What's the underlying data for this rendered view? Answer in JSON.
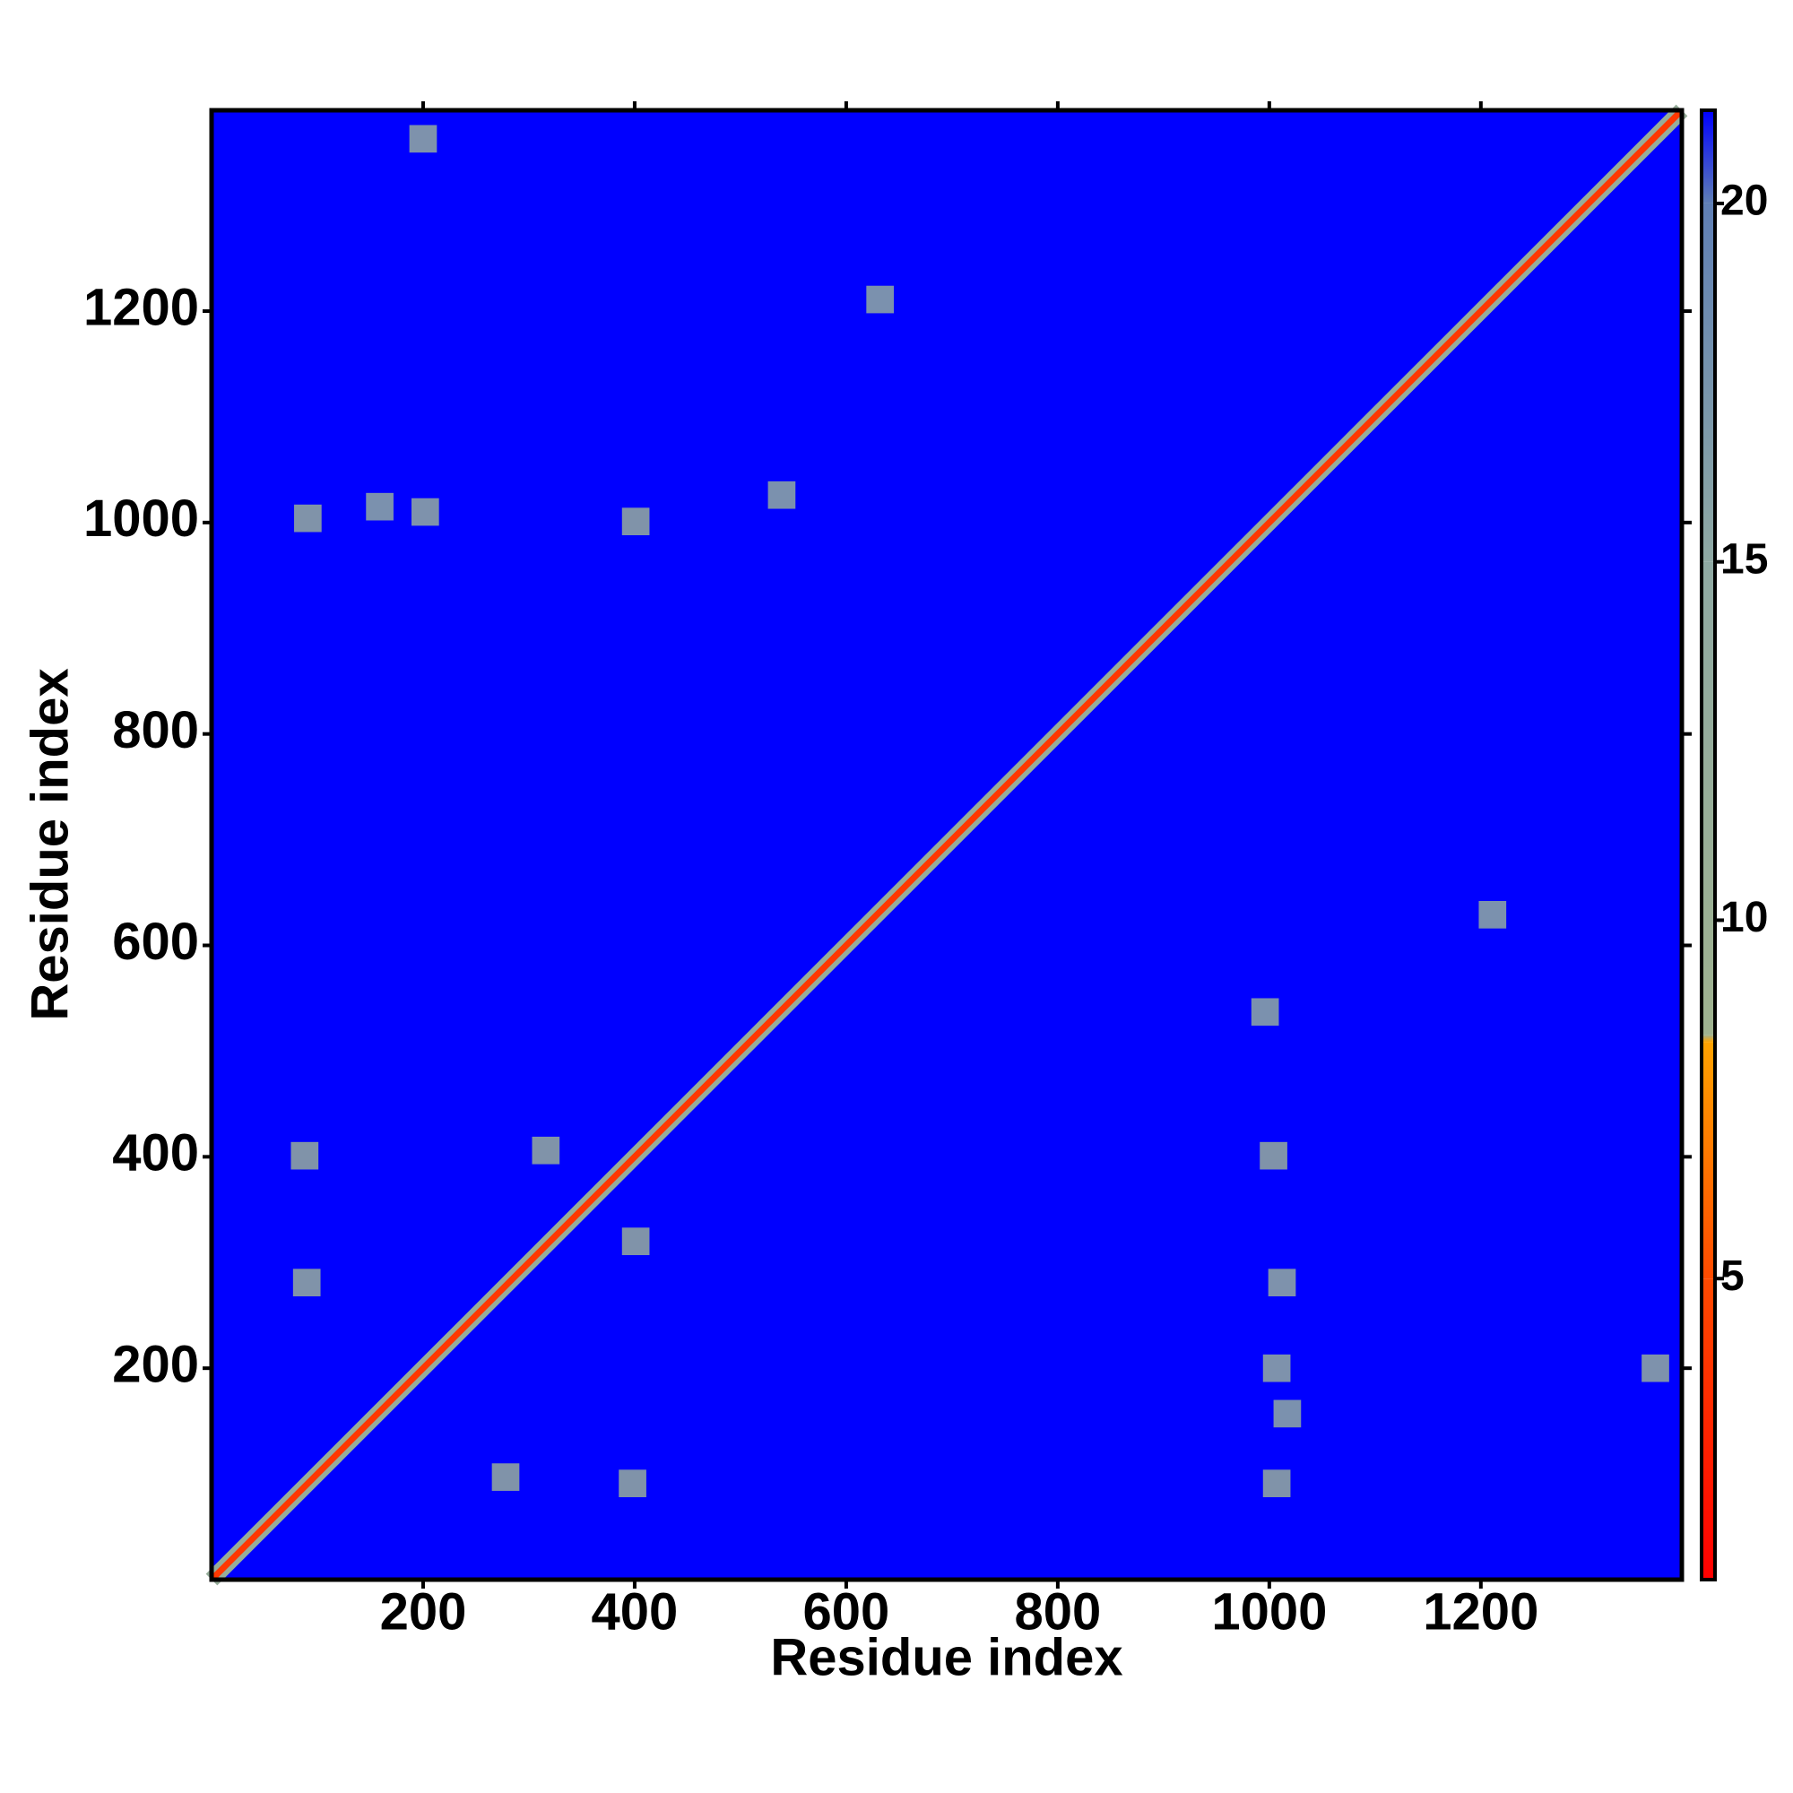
{
  "chart_data": {
    "type": "heatmap",
    "x_label": "Residue index",
    "y_label": "Residue index",
    "xlim": [
      0,
      1390
    ],
    "ylim": [
      0,
      1390
    ],
    "xticks": [
      200,
      400,
      600,
      800,
      1000,
      1200
    ],
    "yticks": [
      200,
      400,
      600,
      800,
      1000,
      1200
    ],
    "background_color": "#0000ff",
    "colorbar": {
      "lim": [
        0.8,
        21.3
      ],
      "ticks": [
        5,
        10,
        15,
        20
      ],
      "colorscale": [
        [
          0.8,
          "#ff0000"
        ],
        [
          5,
          "#ff4a00"
        ],
        [
          8.3,
          "#ffa200"
        ],
        [
          8.4,
          "#9fb28f"
        ],
        [
          15,
          "#8fa9a3"
        ],
        [
          20,
          "#5f7fb5"
        ],
        [
          21.3,
          "#0000ff"
        ]
      ]
    },
    "contacts": {
      "x": [
        278,
        90,
        1007,
        91,
        398,
        88,
        401,
        1004,
        316,
        401,
        1007,
        202,
        200,
        1365,
        1012,
        632,
        1211,
        539,
        996,
        159,
        1017
      ],
      "y": [
        97,
        281,
        91,
        1004,
        91,
        401,
        1001,
        401,
        406,
        320,
        200,
        1010,
        1363,
        200,
        281,
        1211,
        629,
        1026,
        537,
        1015,
        157
      ],
      "values": [
        12,
        12,
        12,
        12,
        12,
        12,
        12,
        12,
        12,
        12,
        13,
        13,
        13,
        13,
        13,
        14,
        14,
        14,
        14,
        14,
        14
      ]
    }
  }
}
